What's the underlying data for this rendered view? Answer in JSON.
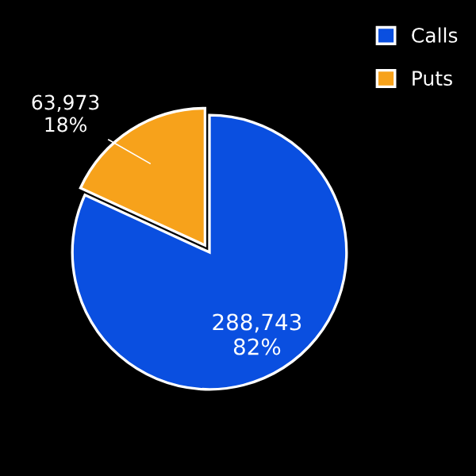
{
  "chart_data": {
    "type": "pie",
    "categories": [
      "Calls",
      "Puts"
    ],
    "values": [
      288743,
      63973
    ],
    "colors": [
      "#0a4fe0",
      "#f7a21b"
    ],
    "value_labels": [
      "288,743\n82%",
      "63,973\n18%"
    ],
    "legend": "top right"
  }
}
